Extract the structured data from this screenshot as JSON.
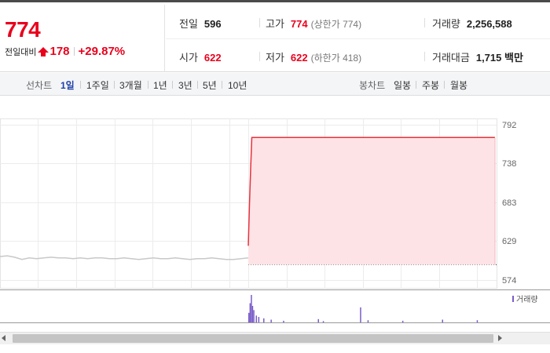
{
  "quote": {
    "price": "774",
    "change_label": "전일대비",
    "change_amount": "178",
    "change_percent": "+29.87%"
  },
  "stats": {
    "prev_close": {
      "label": "전일",
      "value": "596"
    },
    "high": {
      "label": "고가",
      "value": "774",
      "sub": "(상한가 774)"
    },
    "volume": {
      "label": "거래량",
      "value": "2,256,588"
    },
    "open": {
      "label": "시가",
      "value": "622"
    },
    "low": {
      "label": "저가",
      "value": "622",
      "sub": "(하한가 418)"
    },
    "amount": {
      "label": "거래대금",
      "value": "1,715 백만"
    }
  },
  "toolbar": {
    "line_label": "선차트",
    "line_ranges": [
      "1일",
      "1주일",
      "3개월",
      "1년",
      "3년",
      "5년",
      "10년"
    ],
    "active_range": "1일",
    "candle_label": "봉차트",
    "candle_ranges": [
      "일봉",
      "주봉",
      "월봉"
    ]
  },
  "colors": {
    "up": "#e8001c",
    "price_line": "#e8323c",
    "area_fill": "#fde3e6",
    "prev_line": "#c8c8c8",
    "volume_bar": "#7a5cc8",
    "active_tab": "#1c3fa6"
  },
  "chart_data": {
    "type": "area",
    "y_ticks": [
      792,
      738,
      683,
      629,
      574
    ],
    "ylim": [
      574,
      792
    ],
    "prev_close_level": 596,
    "legend": "거래량",
    "prev_day_series": [
      607,
      608,
      606,
      603,
      605,
      604,
      605,
      606,
      605,
      605,
      604,
      605,
      604,
      605,
      605,
      604,
      604,
      605,
      604,
      603,
      604,
      605,
      604,
      604,
      605,
      604,
      603,
      604,
      604,
      605,
      604,
      603,
      603,
      604,
      605
    ],
    "today_series": [
      622,
      680,
      730,
      774,
      774,
      774,
      774,
      774,
      774,
      774,
      774,
      774,
      774,
      774,
      774,
      774,
      774,
      774,
      774,
      774,
      774
    ],
    "volume_spikes": [
      {
        "pos": 0.0,
        "v": 0.35
      },
      {
        "pos": 0.005,
        "v": 0.7
      },
      {
        "pos": 0.01,
        "v": 1.0
      },
      {
        "pos": 0.015,
        "v": 0.6
      },
      {
        "pos": 0.02,
        "v": 0.45
      },
      {
        "pos": 0.03,
        "v": 0.25
      },
      {
        "pos": 0.04,
        "v": 0.2
      },
      {
        "pos": 0.06,
        "v": 0.15
      },
      {
        "pos": 0.09,
        "v": 0.1
      },
      {
        "pos": 0.14,
        "v": 0.06
      },
      {
        "pos": 0.28,
        "v": 0.12
      },
      {
        "pos": 0.3,
        "v": 0.05
      },
      {
        "pos": 0.45,
        "v": 0.55
      },
      {
        "pos": 0.48,
        "v": 0.08
      },
      {
        "pos": 0.62,
        "v": 0.06
      },
      {
        "pos": 0.78,
        "v": 0.1
      },
      {
        "pos": 0.92,
        "v": 0.08
      }
    ]
  }
}
